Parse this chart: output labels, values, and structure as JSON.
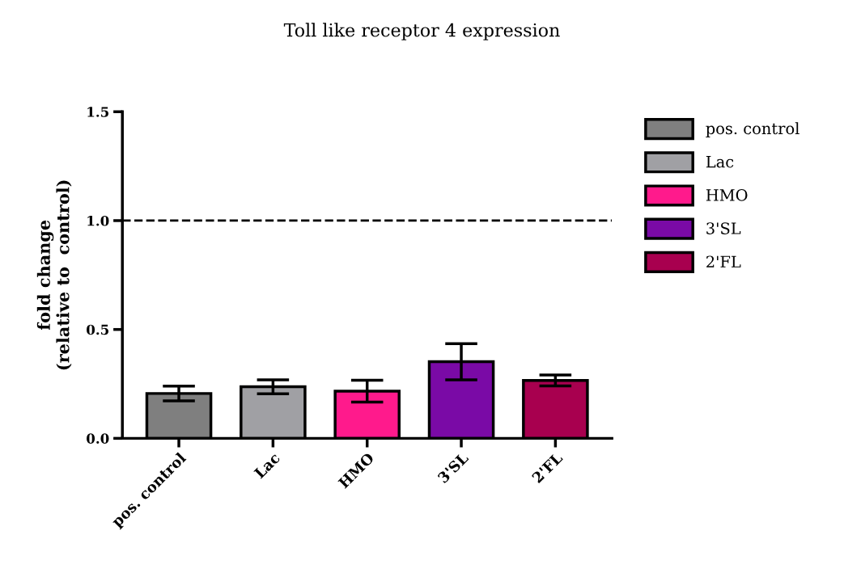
{
  "chart_data": {
    "type": "bar",
    "title": "Toll like receptor 4 expression",
    "ylabel": "fold change\n(relative to  control)",
    "categories": [
      "pos. control",
      "Lac",
      "HMO",
      "3'SL",
      "2'FL"
    ],
    "series": [
      {
        "name": "pos. control",
        "color": "#7f7f7f",
        "values": [
          0.206,
          null,
          null,
          null,
          null
        ],
        "errors": [
          0.034,
          null,
          null,
          null,
          null
        ]
      },
      {
        "name": "Lac",
        "color": "#a0a0a4",
        "values": [
          null,
          0.237,
          null,
          null,
          null
        ],
        "errors": [
          null,
          0.032,
          null,
          null,
          null
        ]
      },
      {
        "name": "HMO",
        "color": "#ff1a8c",
        "values": [
          null,
          null,
          0.217,
          null,
          null
        ],
        "errors": [
          null,
          null,
          0.05,
          null,
          null
        ]
      },
      {
        "name": "3'SL",
        "color": "#7a0aa6",
        "values": [
          null,
          null,
          null,
          0.352,
          null
        ],
        "errors": [
          null,
          null,
          null,
          0.083,
          null
        ]
      },
      {
        "name": "2'FL",
        "color": "#a8004f",
        "values": [
          null,
          null,
          null,
          null,
          0.266
        ],
        "errors": [
          null,
          null,
          null,
          null,
          0.025
        ]
      }
    ],
    "ylim": [
      0,
      1.5
    ],
    "yticks": [
      {
        "value": 0,
        "label": "0.0"
      },
      {
        "value": 0.5,
        "label": "0.5"
      },
      {
        "value": 1.0,
        "label": "1.0"
      },
      {
        "value": 1.5,
        "label": "1.5"
      }
    ],
    "ref_lines": [
      {
        "axis": "y",
        "value": 1.0,
        "line_style": "dashed"
      }
    ],
    "legend": "top right",
    "grid": false
  }
}
